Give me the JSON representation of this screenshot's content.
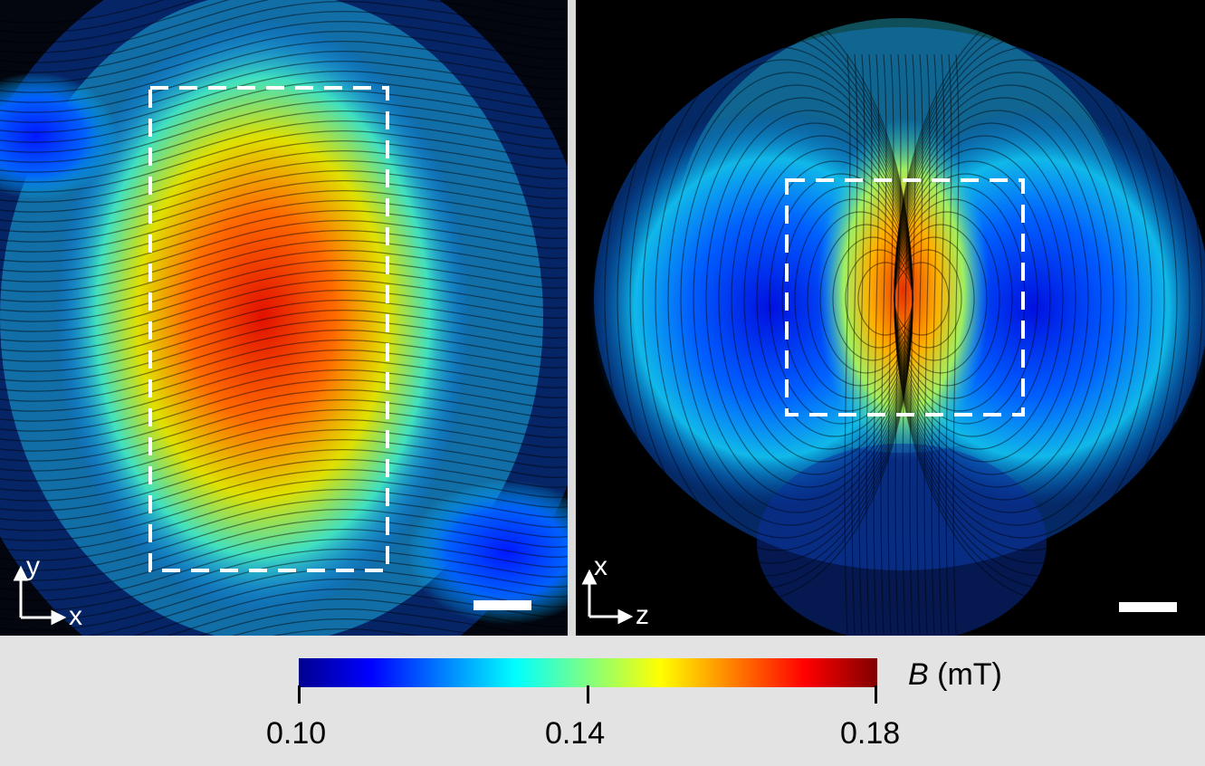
{
  "left_panel": {
    "axes": {
      "vertical": "y",
      "horizontal": "x"
    }
  },
  "right_panel": {
    "axes": {
      "vertical": "x",
      "horizontal": "z"
    }
  },
  "colorbar": {
    "symbol": "B",
    "unit": "(mT)",
    "ticks": [
      "0.10",
      "0.14",
      "0.18"
    ]
  },
  "colors": {
    "dashed_box": "#ffffff",
    "background": "#000000",
    "colormap": [
      "#00008f",
      "#0000ff",
      "#0080ff",
      "#00ffff",
      "#80ff80",
      "#ffff00",
      "#ff8000",
      "#ff0000",
      "#800000"
    ]
  }
}
